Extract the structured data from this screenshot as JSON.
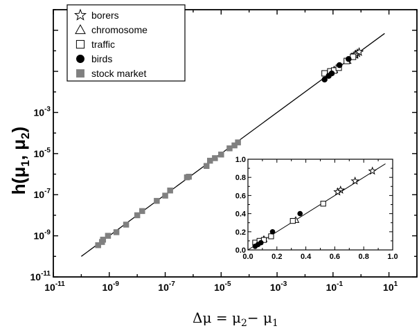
{
  "chart_data": {
    "type": "scatter",
    "xscale": "log",
    "yscale": "log",
    "xlim": [
      1e-11,
      100
    ],
    "ylim": [
      1e-11,
      100
    ],
    "grid": false,
    "legend_position": "top-left",
    "x_ticks": [
      {
        "value": 1e-11,
        "base": "10",
        "exp": "-11"
      },
      {
        "value": 1e-09,
        "base": "10",
        "exp": "-9"
      },
      {
        "value": 1e-07,
        "base": "10",
        "exp": "-7"
      },
      {
        "value": 1e-05,
        "base": "10",
        "exp": "-5"
      },
      {
        "value": 0.001,
        "base": "10",
        "exp": "-3"
      },
      {
        "value": 0.1,
        "base": "10",
        "exp": "-1"
      },
      {
        "value": 10,
        "base": "10",
        "exp": "1"
      }
    ],
    "y_ticks": [
      {
        "value": 1e-11,
        "base": "10",
        "exp": "-11"
      },
      {
        "value": 1e-09,
        "base": "10",
        "exp": "-9"
      },
      {
        "value": 1e-07,
        "base": "10",
        "exp": "-7"
      },
      {
        "value": 1e-05,
        "base": "10",
        "exp": "-5"
      },
      {
        "value": 0.001,
        "base": "10",
        "exp": "-3"
      }
    ],
    "xlabel": {
      "delta": "Δμ",
      "eq": " = ",
      "mu_a": "μ",
      "sub_a": "2",
      "minus": "− ",
      "mu_b": "μ",
      "sub_b": "1"
    },
    "ylabel": {
      "text": "h(μ",
      "sub1": "1",
      "mid": ", μ",
      "sub2": "2",
      "end": ")"
    },
    "fit_line": {
      "x": [
        1e-10,
        7
      ],
      "y": [
        1e-10,
        7
      ]
    },
    "series": [
      {
        "name": "borers",
        "marker": "star-open",
        "color": "#000000",
        "points": [
          [
            0.64,
            0.66
          ],
          [
            0.74,
            0.76
          ],
          [
            0.86,
            0.87
          ],
          [
            0.62,
            0.64
          ]
        ]
      },
      {
        "name": "chromosome",
        "marker": "triangle-open",
        "color": "#000000",
        "points": [
          [
            0.33,
            0.33
          ],
          [
            0.08,
            0.09
          ],
          [
            0.11,
            0.12
          ]
        ]
      },
      {
        "name": "traffic",
        "marker": "square-open",
        "color": "#000000",
        "points": [
          [
            0.05,
            0.08
          ],
          [
            0.08,
            0.1
          ],
          [
            0.11,
            0.11
          ],
          [
            0.16,
            0.15
          ],
          [
            0.31,
            0.32
          ],
          [
            0.52,
            0.51
          ]
        ]
      },
      {
        "name": "birds",
        "marker": "circle-filled",
        "color": "#000000",
        "points": [
          [
            0.05,
            0.04
          ],
          [
            0.07,
            0.06
          ],
          [
            0.09,
            0.08
          ],
          [
            0.17,
            0.2
          ],
          [
            0.36,
            0.4
          ]
        ]
      },
      {
        "name": "stock market",
        "marker": "square-filled",
        "color": "#808080",
        "points": [
          [
            4e-10,
            3.5e-10
          ],
          [
            5.5e-10,
            5e-10
          ],
          [
            6e-10,
            6.5e-10
          ],
          [
            9e-10,
            1e-09
          ],
          [
            1.8e-09,
            1.5e-09
          ],
          [
            4e-09,
            3.5e-09
          ],
          [
            1e-08,
            1e-08
          ],
          [
            1.5e-08,
            1.6e-08
          ],
          [
            5e-08,
            5e-08
          ],
          [
            1e-07,
            9e-08
          ],
          [
            1.5e-07,
            1.6e-07
          ],
          [
            6e-07,
            7e-07
          ],
          [
            7e-07,
            7.5e-07
          ],
          [
            3e-06,
            2.5e-06
          ],
          [
            4e-06,
            4.5e-06
          ],
          [
            6e-06,
            6e-06
          ],
          [
            1e-05,
            9e-06
          ],
          [
            2e-05,
            1.8e-05
          ],
          [
            3e-05,
            2.5e-05
          ],
          [
            4e-05,
            3.5e-05
          ]
        ]
      }
    ],
    "inset": {
      "type": "scatter",
      "xlim": [
        0.0,
        1.0
      ],
      "ylim": [
        0.0,
        1.0
      ],
      "x_ticks": [
        "0.0",
        "0.2",
        "0.4",
        "0.6",
        "0.8",
        "1.0"
      ],
      "y_ticks": [
        "0.0",
        "0.2",
        "0.4",
        "0.6",
        "0.8",
        "1.0"
      ],
      "fit_line": {
        "x": [
          0.0,
          0.95
        ],
        "y": [
          0.0,
          0.95
        ]
      }
    }
  }
}
